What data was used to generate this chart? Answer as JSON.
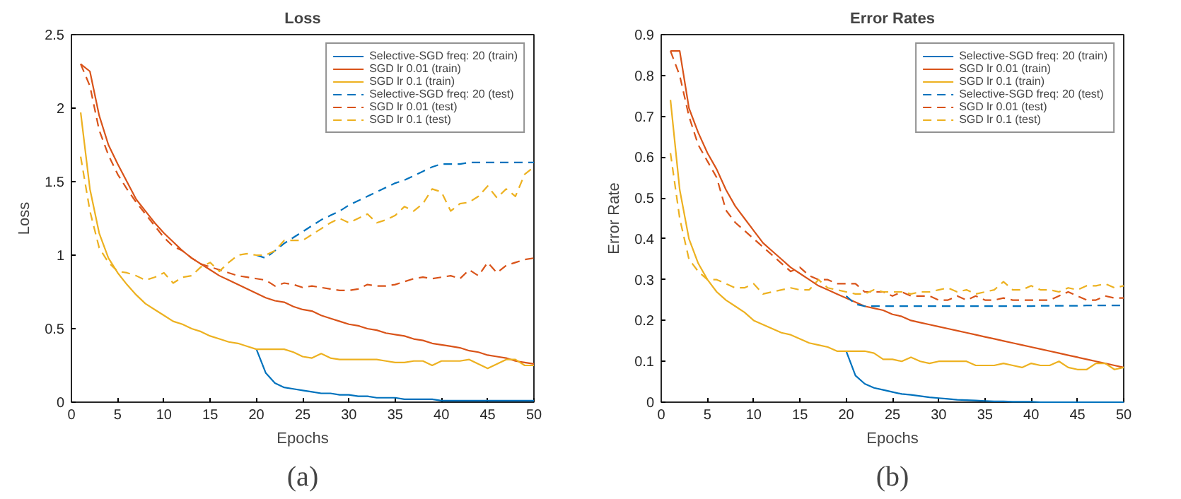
{
  "chart_data": [
    {
      "type": "line",
      "title": "Loss",
      "xlabel": "Epochs",
      "ylabel": "Loss",
      "annotations": [
        "(a)"
      ],
      "x": [
        1,
        2,
        3,
        4,
        5,
        6,
        7,
        8,
        9,
        10,
        11,
        12,
        13,
        14,
        15,
        16,
        17,
        18,
        19,
        20,
        21,
        22,
        23,
        24,
        25,
        26,
        27,
        28,
        29,
        30,
        31,
        32,
        33,
        34,
        35,
        36,
        37,
        38,
        39,
        40,
        41,
        42,
        43,
        44,
        45,
        46,
        47,
        48,
        49,
        50
      ],
      "xlim": [
        0,
        50
      ],
      "xticks": [
        0,
        5,
        10,
        15,
        20,
        25,
        30,
        35,
        40,
        45,
        50
      ],
      "ylim": [
        0,
        2.5
      ],
      "yticks": [
        0,
        0.5,
        1,
        1.5,
        2,
        2.5
      ],
      "grid": false,
      "legend": "top right",
      "series": [
        {
          "name": "Selective-SGD freq: 20 (train)",
          "color": "#0072bd",
          "line_style": "solid",
          "x": [
            20,
            21,
            22,
            23,
            24,
            25,
            26,
            27,
            28,
            29,
            30,
            31,
            32,
            33,
            34,
            35,
            36,
            37,
            38,
            39,
            40,
            41,
            42,
            43,
            44,
            45,
            46,
            47,
            48,
            49,
            50
          ],
          "values": [
            0.36,
            0.2,
            0.13,
            0.1,
            0.09,
            0.08,
            0.07,
            0.06,
            0.06,
            0.05,
            0.05,
            0.04,
            0.04,
            0.03,
            0.03,
            0.03,
            0.02,
            0.02,
            0.02,
            0.02,
            0.01,
            0.01,
            0.01,
            0.01,
            0.01,
            0.01,
            0.01,
            0.01,
            0.01,
            0.01,
            0.01
          ]
        },
        {
          "name": "SGD lr 0.01 (train)",
          "color": "#d95319",
          "line_style": "solid",
          "values": [
            2.3,
            2.25,
            1.95,
            1.75,
            1.62,
            1.5,
            1.38,
            1.3,
            1.22,
            1.15,
            1.09,
            1.03,
            0.98,
            0.94,
            0.9,
            0.86,
            0.83,
            0.8,
            0.77,
            0.74,
            0.71,
            0.69,
            0.68,
            0.65,
            0.63,
            0.62,
            0.59,
            0.57,
            0.55,
            0.53,
            0.52,
            0.5,
            0.49,
            0.47,
            0.46,
            0.45,
            0.43,
            0.42,
            0.4,
            0.39,
            0.38,
            0.37,
            0.35,
            0.34,
            0.32,
            0.31,
            0.3,
            0.28,
            0.27,
            0.26
          ]
        },
        {
          "name": "SGD lr 0.1 (train)",
          "color": "#edb120",
          "line_style": "solid",
          "values": [
            1.97,
            1.45,
            1.15,
            0.98,
            0.88,
            0.8,
            0.73,
            0.67,
            0.63,
            0.59,
            0.55,
            0.53,
            0.5,
            0.48,
            0.45,
            0.43,
            0.41,
            0.4,
            0.38,
            0.36,
            0.36,
            0.36,
            0.36,
            0.34,
            0.31,
            0.3,
            0.33,
            0.3,
            0.29,
            0.29,
            0.29,
            0.29,
            0.29,
            0.28,
            0.27,
            0.27,
            0.28,
            0.28,
            0.25,
            0.28,
            0.28,
            0.28,
            0.29,
            0.26,
            0.23,
            0.26,
            0.29,
            0.29,
            0.25,
            0.25
          ]
        },
        {
          "name": "Selective-SGD freq: 20 (test)",
          "color": "#0072bd",
          "line_style": "dashed",
          "x": [
            20,
            21,
            22,
            23,
            24,
            25,
            26,
            27,
            28,
            29,
            30,
            31,
            32,
            33,
            34,
            35,
            36,
            37,
            38,
            39,
            40,
            41,
            42,
            43,
            44,
            45,
            46,
            47,
            48,
            49,
            50
          ],
          "values": [
            1.0,
            0.98,
            1.03,
            1.08,
            1.12,
            1.16,
            1.2,
            1.24,
            1.27,
            1.3,
            1.34,
            1.37,
            1.4,
            1.43,
            1.46,
            1.49,
            1.51,
            1.54,
            1.57,
            1.6,
            1.62,
            1.62,
            1.62,
            1.63,
            1.63,
            1.63,
            1.63,
            1.63,
            1.63,
            1.63,
            1.63
          ]
        },
        {
          "name": "SGD lr 0.01 (test)",
          "color": "#d95319",
          "line_style": "dashed",
          "values": [
            2.3,
            2.15,
            1.85,
            1.68,
            1.55,
            1.45,
            1.36,
            1.28,
            1.2,
            1.12,
            1.06,
            1.03,
            0.98,
            0.94,
            0.92,
            0.9,
            0.88,
            0.86,
            0.85,
            0.84,
            0.83,
            0.79,
            0.81,
            0.8,
            0.78,
            0.79,
            0.78,
            0.77,
            0.76,
            0.76,
            0.77,
            0.8,
            0.79,
            0.79,
            0.8,
            0.82,
            0.84,
            0.85,
            0.84,
            0.85,
            0.86,
            0.84,
            0.9,
            0.86,
            0.95,
            0.88,
            0.93,
            0.95,
            0.97,
            0.98
          ]
        },
        {
          "name": "SGD lr 0.1 (test)",
          "color": "#edb120",
          "line_style": "dashed",
          "values": [
            1.67,
            1.3,
            1.05,
            0.95,
            0.89,
            0.88,
            0.86,
            0.83,
            0.85,
            0.88,
            0.81,
            0.85,
            0.86,
            0.92,
            0.95,
            0.89,
            0.95,
            1.0,
            1.01,
            1.0,
            1.0,
            1.03,
            1.1,
            1.1,
            1.1,
            1.14,
            1.18,
            1.22,
            1.25,
            1.22,
            1.25,
            1.28,
            1.22,
            1.24,
            1.27,
            1.33,
            1.3,
            1.35,
            1.45,
            1.43,
            1.3,
            1.35,
            1.36,
            1.4,
            1.47,
            1.39,
            1.45,
            1.4,
            1.55,
            1.6
          ]
        }
      ]
    },
    {
      "type": "line",
      "title": "Error Rates",
      "xlabel": "Epochs",
      "ylabel": "Error Rate",
      "annotations": [
        "(b)"
      ],
      "x": [
        1,
        2,
        3,
        4,
        5,
        6,
        7,
        8,
        9,
        10,
        11,
        12,
        13,
        14,
        15,
        16,
        17,
        18,
        19,
        20,
        21,
        22,
        23,
        24,
        25,
        26,
        27,
        28,
        29,
        30,
        31,
        32,
        33,
        34,
        35,
        36,
        37,
        38,
        39,
        40,
        41,
        42,
        43,
        44,
        45,
        46,
        47,
        48,
        49,
        50
      ],
      "xlim": [
        0,
        50
      ],
      "xticks": [
        0,
        5,
        10,
        15,
        20,
        25,
        30,
        35,
        40,
        45,
        50
      ],
      "ylim": [
        0,
        0.9
      ],
      "yticks": [
        0,
        0.1,
        0.2,
        0.3,
        0.4,
        0.5,
        0.6,
        0.7,
        0.8,
        0.9
      ],
      "grid": false,
      "legend": "top right",
      "series": [
        {
          "name": "Selective-SGD freq: 20 (train)",
          "color": "#0072bd",
          "line_style": "solid",
          "x": [
            20,
            21,
            22,
            23,
            24,
            25,
            26,
            27,
            28,
            29,
            30,
            31,
            32,
            33,
            34,
            35,
            36,
            37,
            38,
            39,
            40,
            41,
            42,
            43,
            44,
            45,
            46,
            47,
            48,
            49,
            50
          ],
          "values": [
            0.125,
            0.065,
            0.045,
            0.035,
            0.03,
            0.025,
            0.02,
            0.018,
            0.015,
            0.012,
            0.01,
            0.008,
            0.006,
            0.005,
            0.004,
            0.003,
            0.002,
            0.002,
            0.001,
            0.001,
            0.001,
            0,
            0,
            0,
            0,
            0,
            0,
            0,
            0,
            0,
            0
          ]
        },
        {
          "name": "SGD lr 0.01 (train)",
          "color": "#d95319",
          "line_style": "solid",
          "values": [
            0.86,
            0.86,
            0.72,
            0.66,
            0.61,
            0.57,
            0.52,
            0.48,
            0.45,
            0.42,
            0.39,
            0.37,
            0.35,
            0.33,
            0.315,
            0.3,
            0.285,
            0.275,
            0.265,
            0.255,
            0.245,
            0.235,
            0.23,
            0.225,
            0.215,
            0.21,
            0.2,
            0.195,
            0.19,
            0.185,
            0.18,
            0.175,
            0.17,
            0.165,
            0.16,
            0.155,
            0.15,
            0.145,
            0.14,
            0.135,
            0.13,
            0.125,
            0.12,
            0.115,
            0.11,
            0.105,
            0.1,
            0.095,
            0.09,
            0.085
          ]
        },
        {
          "name": "SGD lr 0.1 (train)",
          "color": "#edb120",
          "line_style": "solid",
          "values": [
            0.74,
            0.52,
            0.4,
            0.34,
            0.3,
            0.27,
            0.25,
            0.235,
            0.22,
            0.2,
            0.19,
            0.18,
            0.17,
            0.165,
            0.155,
            0.145,
            0.14,
            0.135,
            0.125,
            0.125,
            0.125,
            0.125,
            0.12,
            0.105,
            0.105,
            0.1,
            0.11,
            0.1,
            0.095,
            0.1,
            0.1,
            0.1,
            0.1,
            0.09,
            0.09,
            0.09,
            0.095,
            0.09,
            0.085,
            0.095,
            0.09,
            0.09,
            0.1,
            0.085,
            0.08,
            0.08,
            0.095,
            0.095,
            0.08,
            0.085
          ]
        },
        {
          "name": "Selective-SGD freq: 20 (test)",
          "color": "#0072bd",
          "line_style": "dashed",
          "x": [
            20,
            21,
            22,
            23,
            24,
            25,
            26,
            27,
            28,
            29,
            30,
            31,
            32,
            33,
            34,
            35,
            36,
            37,
            38,
            39,
            40,
            41,
            42,
            43,
            44,
            45,
            46,
            47,
            48,
            49,
            50
          ],
          "values": [
            0.26,
            0.24,
            0.235,
            0.235,
            0.235,
            0.235,
            0.235,
            0.235,
            0.235,
            0.235,
            0.235,
            0.235,
            0.235,
            0.235,
            0.235,
            0.235,
            0.235,
            0.235,
            0.235,
            0.235,
            0.235,
            0.236,
            0.236,
            0.236,
            0.236,
            0.236,
            0.237,
            0.237,
            0.237,
            0.237,
            0.237
          ]
        },
        {
          "name": "SGD lr 0.01 (test)",
          "color": "#d95319",
          "line_style": "dashed",
          "values": [
            0.86,
            0.8,
            0.7,
            0.63,
            0.59,
            0.55,
            0.47,
            0.44,
            0.42,
            0.4,
            0.38,
            0.36,
            0.34,
            0.32,
            0.33,
            0.31,
            0.3,
            0.3,
            0.29,
            0.29,
            0.29,
            0.27,
            0.27,
            0.27,
            0.26,
            0.27,
            0.26,
            0.26,
            0.26,
            0.25,
            0.25,
            0.26,
            0.25,
            0.26,
            0.25,
            0.25,
            0.255,
            0.25,
            0.25,
            0.25,
            0.25,
            0.25,
            0.26,
            0.27,
            0.26,
            0.25,
            0.25,
            0.26,
            0.255,
            0.255
          ]
        },
        {
          "name": "SGD lr 0.1 (test)",
          "color": "#edb120",
          "line_style": "dashed",
          "values": [
            0.61,
            0.45,
            0.35,
            0.32,
            0.3,
            0.3,
            0.29,
            0.28,
            0.28,
            0.29,
            0.265,
            0.27,
            0.275,
            0.28,
            0.275,
            0.275,
            0.3,
            0.28,
            0.275,
            0.27,
            0.265,
            0.265,
            0.275,
            0.27,
            0.27,
            0.27,
            0.265,
            0.27,
            0.27,
            0.275,
            0.28,
            0.27,
            0.275,
            0.265,
            0.27,
            0.275,
            0.295,
            0.275,
            0.275,
            0.285,
            0.275,
            0.275,
            0.27,
            0.28,
            0.275,
            0.285,
            0.285,
            0.29,
            0.28,
            0.285
          ]
        }
      ]
    }
  ]
}
